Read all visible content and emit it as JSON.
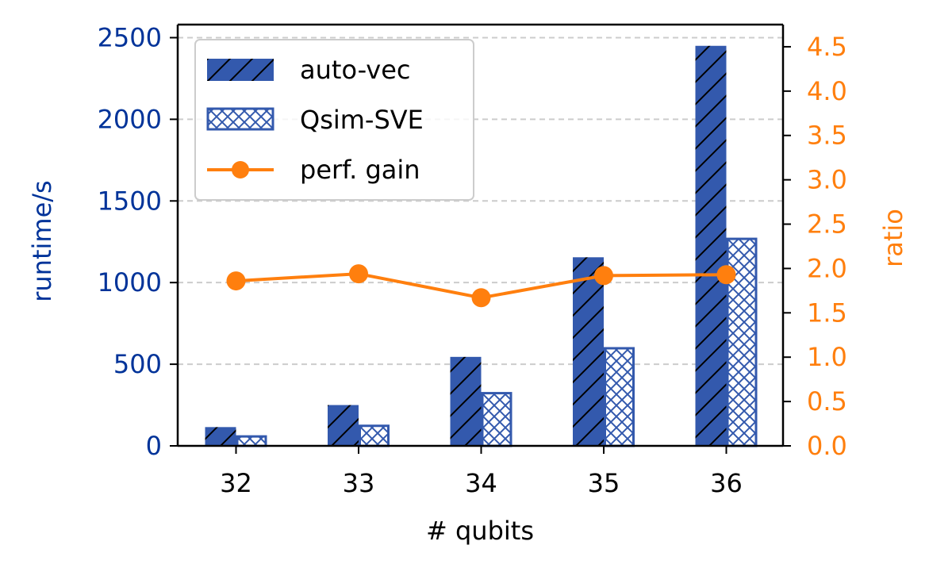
{
  "chart_data": {
    "type": "bar",
    "categories": [
      "32",
      "33",
      "34",
      "35",
      "36"
    ],
    "series": [
      {
        "name": "auto-vec",
        "axis": "left",
        "values": [
          115,
          250,
          545,
          1155,
          2450
        ],
        "color": "#3359ad",
        "pattern": "diagonal-hatch"
      },
      {
        "name": "Qsim-SVE",
        "axis": "left",
        "values": [
          65,
          130,
          330,
          605,
          1275
        ],
        "color": "#3359ad",
        "pattern": "cross-hatch"
      },
      {
        "name": "perf. gain",
        "axis": "right",
        "type": "line",
        "marker": "circle",
        "values": [
          1.86,
          1.94,
          1.67,
          1.92,
          1.93
        ],
        "color": "#ff7f0e"
      }
    ],
    "xlabel": "# qubits",
    "ylabel": "runtime/s",
    "y2label": "ratio",
    "ylim": [
      0,
      2580
    ],
    "y2lim": [
      0,
      4.75
    ],
    "yticks": [
      "0",
      "500",
      "1000",
      "1500",
      "2000",
      "2500"
    ],
    "y2ticks": [
      "0.0",
      "0.5",
      "1.0",
      "1.5",
      "2.0",
      "2.5",
      "3.0",
      "3.5",
      "4.0",
      "4.5"
    ],
    "grid": "horizontal dashed",
    "legend": "upper-left",
    "colors": {
      "left_axis": "#003399",
      "right_axis": "#ff7f0e"
    }
  }
}
